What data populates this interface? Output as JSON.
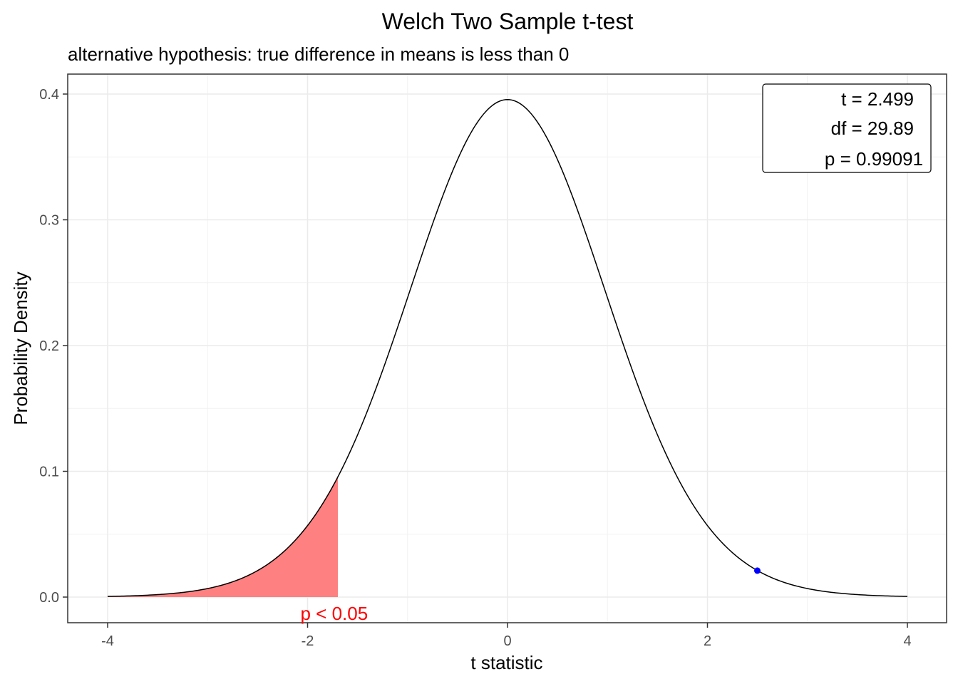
{
  "chart_data": {
    "type": "line",
    "title": "Welch Two Sample t-test",
    "subtitle": "alternative hypothesis: true difference in means is less than 0",
    "xlabel": "t statistic",
    "ylabel": "Probability Density",
    "xlim": [
      -4,
      4
    ],
    "ylim": [
      0,
      0.4
    ],
    "x_ticks": [
      -4,
      -2,
      0,
      2,
      4
    ],
    "x_tick_labels": [
      "-4",
      "-2",
      "0",
      "2",
      "4"
    ],
    "y_ticks": [
      0.0,
      0.1,
      0.2,
      0.3,
      0.4
    ],
    "y_tick_labels": [
      "0.0",
      "0.1",
      "0.2",
      "0.3",
      "0.4"
    ],
    "grid": true,
    "distribution": {
      "family": "t",
      "df": 29.89
    },
    "rejection_region": {
      "from": -4,
      "to": -1.697,
      "color": "#ff8080"
    },
    "rejection_label": {
      "text": "p < 0.05",
      "color": "#ff0000",
      "x": -2.0,
      "y": -0.013
    },
    "observed_point": {
      "x": 2.499,
      "y": 0.021,
      "color": "#0000ff"
    },
    "stats_box": {
      "position": "top-right",
      "lines": [
        "t = 2.499",
        "df = 29.89",
        "p = 0.99091"
      ]
    },
    "line_color": "#000000"
  }
}
